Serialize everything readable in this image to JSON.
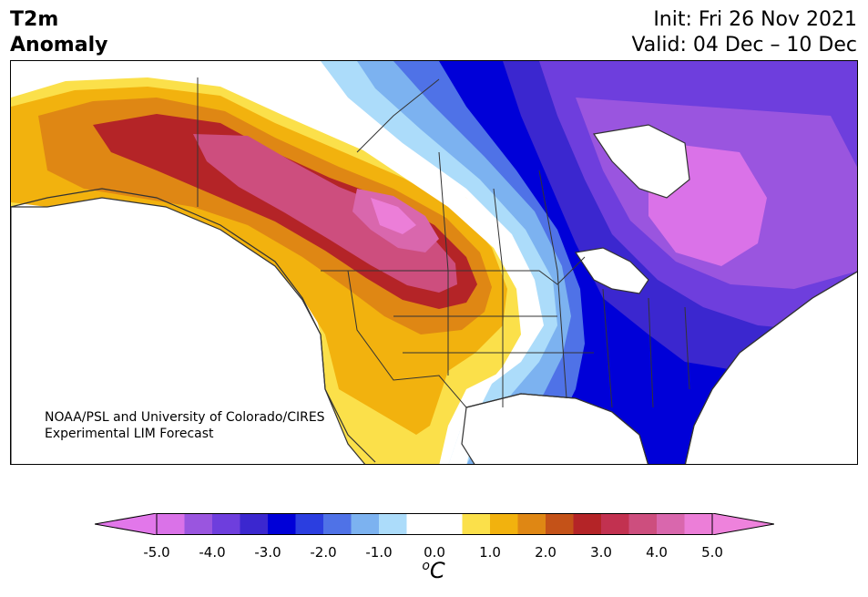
{
  "title": {
    "line1": "T2m",
    "line2": "Anomaly"
  },
  "header": {
    "init": "Init: Fri 26 Nov 2021",
    "valid": "Valid: 04 Dec – 10 Dec"
  },
  "credit": {
    "line1": "NOAA/PSL and University of Colorado/CIRES",
    "line2": "Experimental LIM Forecast"
  },
  "colorbar": {
    "unit_sup": "o",
    "unit_base": "C",
    "min": -5.0,
    "max": 5.0,
    "extend": "both",
    "ticks": [
      "-5.0",
      "-4.0",
      "-3.0",
      "-2.0",
      "-1.0",
      "0.0",
      "1.0",
      "2.0",
      "3.0",
      "4.0",
      "5.0"
    ],
    "colors": [
      "#da72e8",
      "#9a55df",
      "#6e3edd",
      "#3b27cf",
      "#0000d8",
      "#2b3ee0",
      "#4f72e7",
      "#7cb2f0",
      "#acdcfa",
      "#ffffff",
      "#ffffff",
      "#fbe04a",
      "#f2b20e",
      "#df8714",
      "#c45218",
      "#b42427",
      "#c23150",
      "#cd4e7e",
      "#d967ad",
      "#ec7ed8"
    ],
    "low_extend_color": "#e277ea",
    "high_extend_color": "#ee82dc"
  },
  "map": {
    "background": "#ffffff",
    "border_color": "#333333",
    "regions": "North America"
  }
}
